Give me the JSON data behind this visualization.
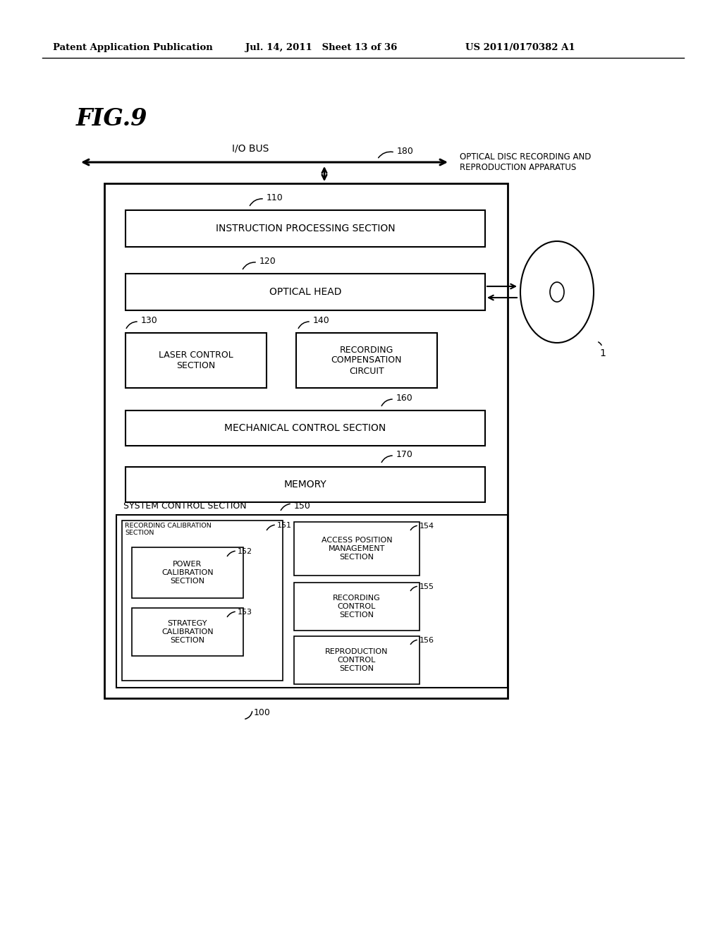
{
  "header_left": "Patent Application Publication",
  "header_mid": "Jul. 14, 2011   Sheet 13 of 36",
  "header_right": "US 2011/0170382 A1",
  "fig_label": "FIG.9",
  "bg_color": "#ffffff",
  "line_color": "#000000",
  "labels": {
    "io_bus": "I/O BUS",
    "ref180": "180",
    "optical_disc_app": "OPTICAL DISC RECORDING AND\nREPRODUCTION APPARATUS",
    "ref110": "110",
    "instruction": "INSTRUCTION PROCESSING SECTION",
    "ref120": "120",
    "optical_head": "OPTICAL HEAD",
    "ref130": "130",
    "laser": "LASER CONTROL\nSECTION",
    "ref140": "140",
    "recording_comp": "RECORDING\nCOMPENSATION\nCIRCUIT",
    "ref160": "160",
    "mechanical": "MECHANICAL CONTROL SECTION",
    "ref170": "170",
    "memory": "MEMORY",
    "system_control": "SYSTEM CONTROL SECTION",
    "ref150": "150",
    "rec_calib": "RECORDING CALIBRATION\nSECTION",
    "ref151": "151",
    "power_calib": "POWER\nCALIBRATION\nSECTION",
    "ref152": "152",
    "strategy_calib": "STRATEGY\nCALIBRATION\nSECTION",
    "ref153": "153",
    "access_pos": "ACCESS POSITION\nMANAGEMENT\nSECTION",
    "ref154": "154",
    "rec_control": "RECORDING\nCONTROL\nSECTION",
    "ref155": "155",
    "repro_control": "REPRODUCTION\nCONTROL\nSECTION",
    "ref156": "156",
    "ref100": "100",
    "ref1": "1"
  }
}
